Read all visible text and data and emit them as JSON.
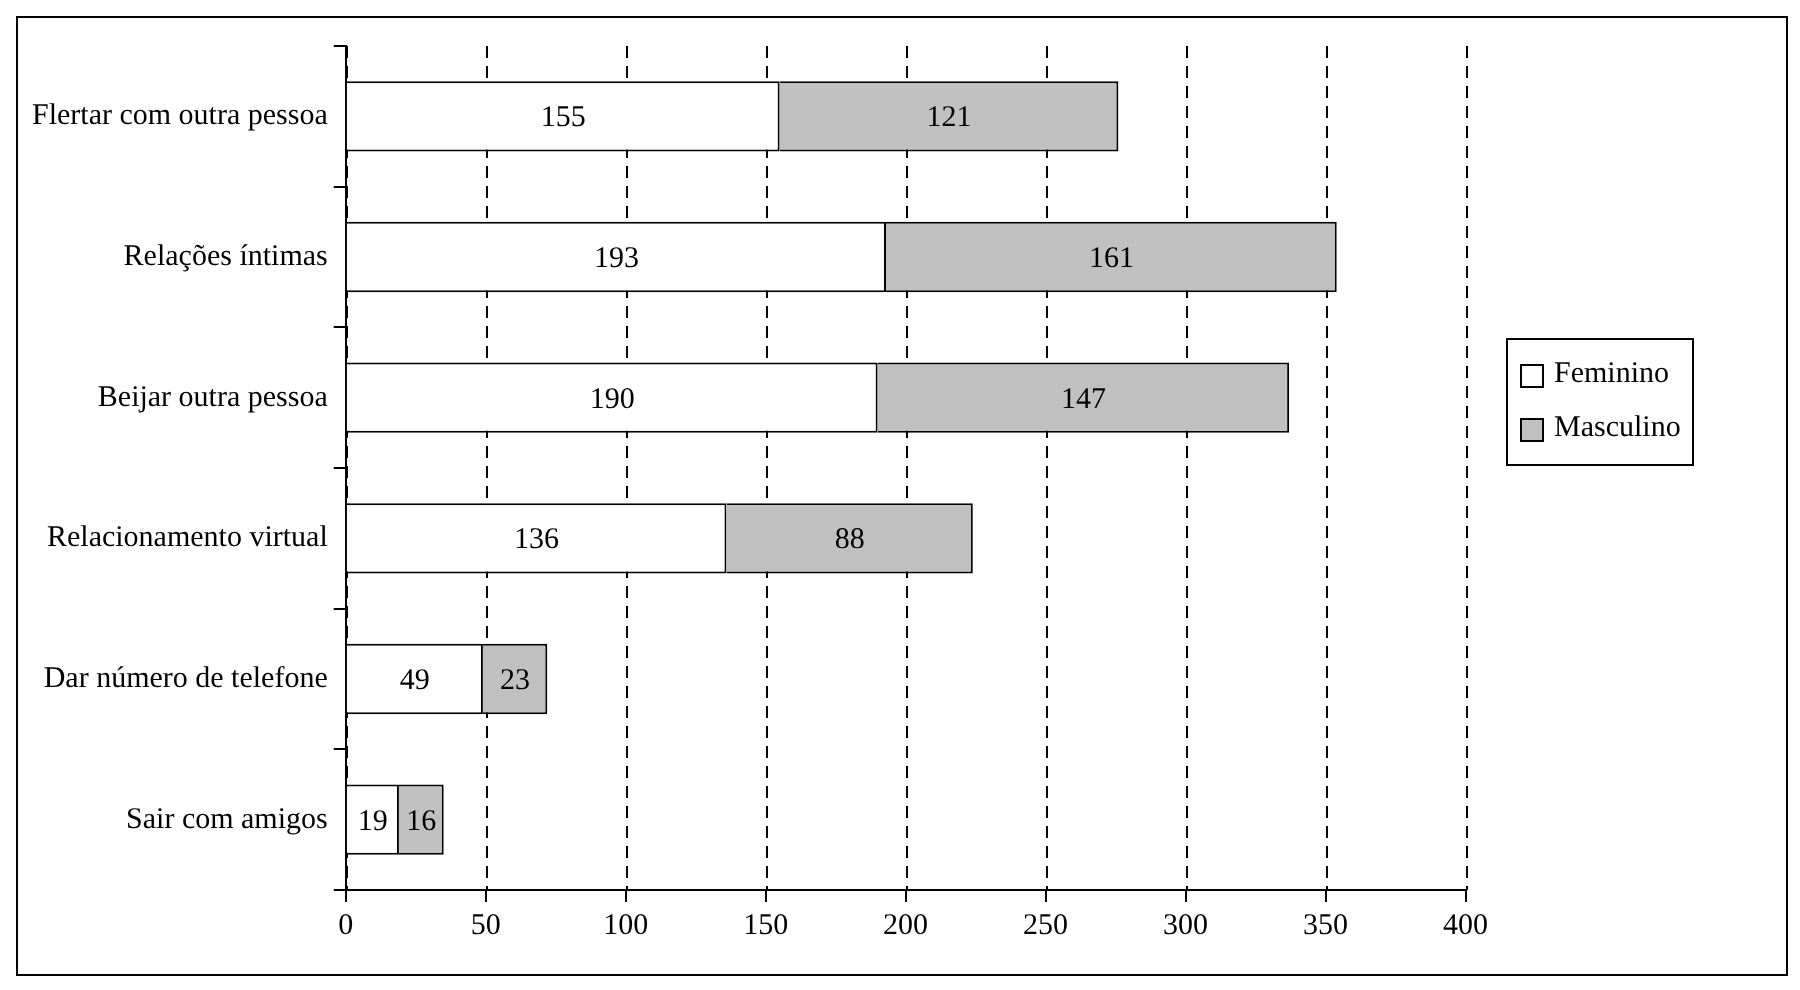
{
  "chart_data": {
    "type": "bar",
    "orientation": "horizontal",
    "stacked": true,
    "categories": [
      "Flertar com outra pessoa",
      "Relações íntimas",
      "Beijar outra pessoa",
      "Relacionamento virtual",
      "Dar número de telefone",
      "Sair com amigos"
    ],
    "series": [
      {
        "name": "Feminino",
        "color": "#ffffff",
        "values": [
          155,
          193,
          190,
          136,
          49,
          19
        ]
      },
      {
        "name": "Masculino",
        "color": "#c0c0c0",
        "values": [
          121,
          161,
          147,
          88,
          23,
          16
        ]
      }
    ],
    "xlim": [
      0,
      400
    ],
    "xticks": [
      0,
      50,
      100,
      150,
      200,
      250,
      300,
      350,
      400
    ],
    "grid": "x",
    "legend": "right",
    "data_labels": true
  }
}
